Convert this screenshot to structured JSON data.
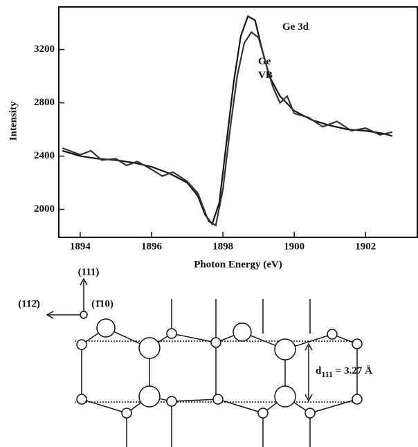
{
  "chart_data": {
    "type": "line",
    "x_label": "Photon Energy (eV)",
    "y_label": "Intensity",
    "xlim": [
      1893.4,
      1903.45
    ],
    "ylim": [
      1790,
      3520
    ],
    "xticks": [
      1894,
      1896,
      1898,
      1900,
      1902
    ],
    "yticks": [
      2000,
      2400,
      2800,
      3200
    ],
    "series": [
      {
        "name": "Ge 3d",
        "color": "#111111",
        "x": [
          1893.5,
          1894,
          1894.5,
          1895,
          1895.5,
          1896,
          1896.5,
          1897,
          1897.3,
          1897.5,
          1897.7,
          1897.9,
          1898.1,
          1898.3,
          1898.5,
          1898.7,
          1898.9,
          1899.1,
          1899.3,
          1899.6,
          1900,
          1900.5,
          1901,
          1901.5,
          1902,
          1902.5,
          1902.75
        ],
        "values": [
          2440,
          2400,
          2380,
          2370,
          2350,
          2320,
          2270,
          2200,
          2100,
          1960,
          1890,
          2050,
          2500,
          2950,
          3300,
          3450,
          3420,
          3200,
          3000,
          2850,
          2740,
          2670,
          2630,
          2600,
          2590,
          2570,
          2550
        ]
      },
      {
        "name": "Ge\nVB",
        "color": "#333333",
        "x": [
          1893.5,
          1894,
          1894.3,
          1894.6,
          1895,
          1895.3,
          1895.6,
          1896,
          1896.3,
          1896.6,
          1897,
          1897.3,
          1897.6,
          1897.8,
          1898,
          1898.2,
          1898.4,
          1898.6,
          1898.8,
          1899,
          1899.2,
          1899.4,
          1899.6,
          1899.8,
          1900,
          1900.4,
          1900.8,
          1901.2,
          1901.6,
          1902,
          1902.4,
          1902.75
        ],
        "values": [
          2460,
          2410,
          2440,
          2370,
          2380,
          2330,
          2360,
          2300,
          2250,
          2280,
          2210,
          2120,
          1910,
          1880,
          2150,
          2600,
          3000,
          3250,
          3330,
          3290,
          3100,
          2920,
          2800,
          2850,
          2720,
          2690,
          2620,
          2660,
          2590,
          2610,
          2560,
          2580
        ]
      }
    ]
  },
  "diagram": {
    "axis_up": "(111)",
    "axis_left": "(112̄)",
    "axis_in": "(1̄10)",
    "spacing": {
      "symbol": "d",
      "subscript": "111",
      "value": " = 3.27 Å"
    }
  }
}
